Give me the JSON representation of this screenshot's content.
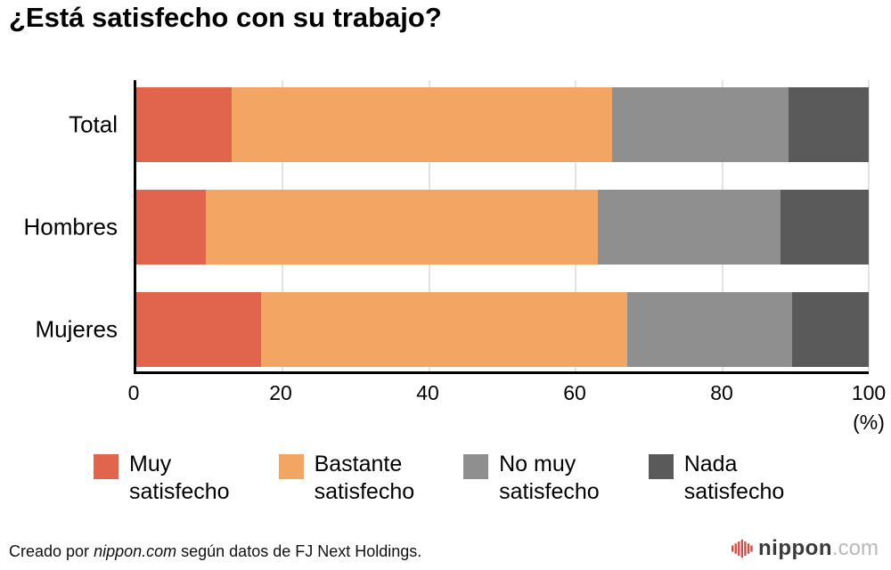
{
  "title": "¿Está satisfecho con su trabajo?",
  "chart_data": {
    "type": "bar",
    "orientation": "horizontal",
    "stacked": true,
    "categories": [
      "Total",
      "Hombres",
      "Mujeres"
    ],
    "series": [
      {
        "name": "Muy satisfecho",
        "color": "#E0654C",
        "values": [
          13,
          9.5,
          17
        ]
      },
      {
        "name": "Bastante satisfecho",
        "color": "#F3A563",
        "values": [
          52,
          53.5,
          50
        ]
      },
      {
        "name": "No muy satisfecho",
        "color": "#8F8F8F",
        "values": [
          24,
          25,
          22.5
        ]
      },
      {
        "name": "Nada satisfecho",
        "color": "#5A5A5A",
        "values": [
          11,
          12,
          10.5
        ]
      }
    ],
    "xlim": [
      0,
      100
    ],
    "xticks": [
      0,
      20,
      40,
      60,
      80,
      100
    ],
    "x_axis_unit": "(%)",
    "grid": true,
    "grid_color": "#c9c9c9",
    "axis_color": "#000000",
    "legend_position": "bottom"
  },
  "legend": {
    "items": [
      {
        "lines": [
          "Muy",
          "satisfecho"
        ]
      },
      {
        "lines": [
          "Bastante",
          "satisfecho"
        ]
      },
      {
        "lines": [
          "No muy",
          "satisfecho"
        ]
      },
      {
        "lines": [
          "Nada",
          "satisfecho"
        ]
      }
    ]
  },
  "footer": {
    "prefix": "Creado por ",
    "source": "nippon.com",
    "suffix": " según datos de FJ Next Holdings."
  },
  "logo": {
    "name": "nippon",
    "tld": ".com",
    "icon_color": "#d24b42"
  }
}
